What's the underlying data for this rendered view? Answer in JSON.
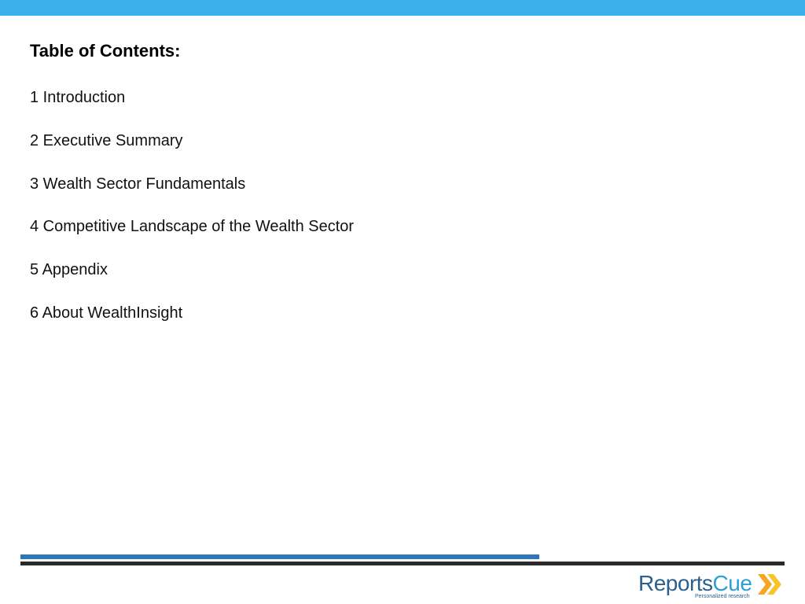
{
  "colors": {
    "top_bar": "#3aafea",
    "footer_blue": "#2e77b8",
    "footer_dark": "#2a2a2a",
    "logo_dark": "#2b5f8f",
    "logo_light": "#2a9fd8",
    "chevron_orange": "#f5a623",
    "chevron_yellow": "#f7c52b"
  },
  "toc": {
    "title": "Table of Contents:",
    "items": [
      "1 Introduction",
      "2 Executive Summary",
      "3 Wealth Sector Fundamentals",
      "4 Competitive Landscape of the Wealth Sector",
      "5 Appendix",
      "6 About WealthInsight"
    ]
  },
  "logo": {
    "word_1": "Reports",
    "word_2": "Cue",
    "tagline": "Personalized research",
    "icon": "double-chevron-right-icon"
  }
}
